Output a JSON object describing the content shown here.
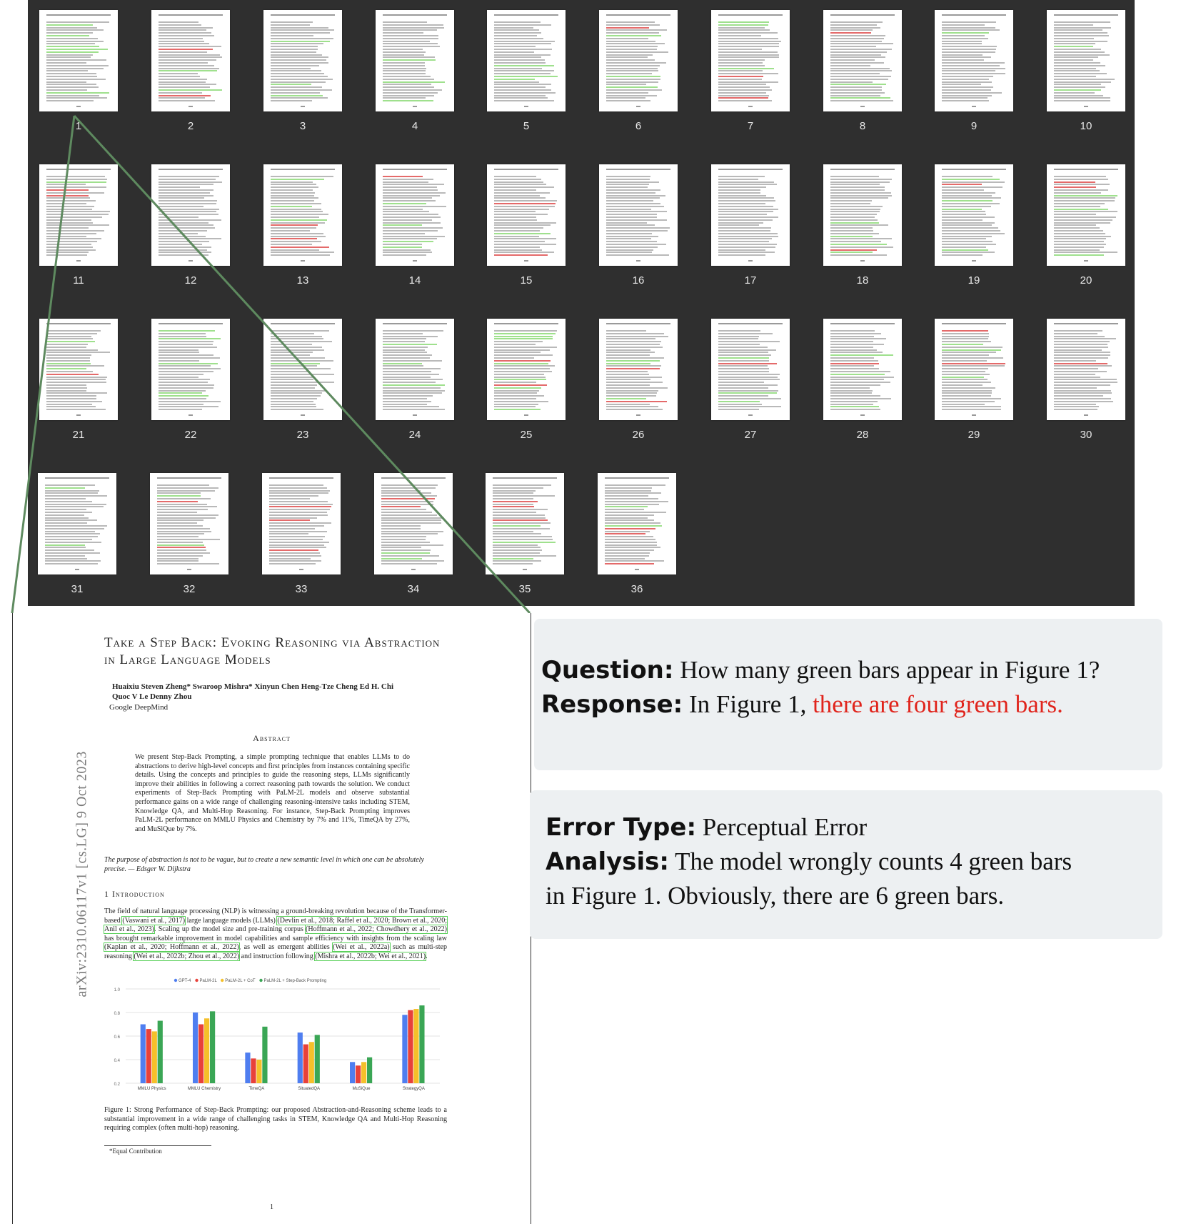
{
  "thumbnails": {
    "pages": [
      "1",
      "2",
      "3",
      "4",
      "5",
      "6",
      "7",
      "8",
      "9",
      "10",
      "11",
      "12",
      "13",
      "14",
      "15",
      "16",
      "17",
      "18",
      "19",
      "20",
      "21",
      "22",
      "23",
      "24",
      "25",
      "26",
      "27",
      "28",
      "29",
      "30",
      "31",
      "32",
      "33",
      "34",
      "35",
      "36"
    ]
  },
  "zoomed_page": {
    "title": "Take a Step Back: Evoking Reasoning via Abstraction in Large Language Models",
    "authors": "Huaixiu Steven Zheng*  Swaroop Mishra*  Xinyun Chen  Heng-Tze Cheng  Ed H. Chi  Quoc V Le  Denny Zhou",
    "affiliation": "Google DeepMind",
    "abstract_heading": "Abstract",
    "abstract": "We present Step-Back Prompting, a simple prompting technique that enables LLMs to do abstractions to derive high-level concepts and first principles from instances containing specific details. Using the concepts and principles to guide the reasoning steps, LLMs significantly improve their abilities in following a correct reasoning path towards the solution. We conduct experiments of Step-Back Prompting with PaLM-2L models and observe substantial performance gains on a wide range of challenging reasoning-intensive tasks including STEM, Knowledge QA, and Multi-Hop Reasoning. For instance, Step-Back Prompting improves PaLM-2L performance on MMLU Physics and Chemistry by 7% and 11%, TimeQA by 27%, and MuSiQue by 7%.",
    "quote": "The purpose of abstraction is not to be vague, but to create a new semantic level in which one can be absolutely precise. — Edsger W. Dijkstra",
    "intro_heading": "1   Introduction",
    "intro": {
      "t1": "The field of natural language processing (NLP) is witnessing a ground-breaking revolution because of the Transformer-based ",
      "c1": "(Vaswani et al., 2017)",
      "t2": " large language models (LLMs) ",
      "c2": "(Devlin et al., 2018; Raffel et al., 2020; Brown et al., 2020; Anil et al., 2023)",
      "t3": ". Scaling up the model size and pre-training corpus ",
      "c3": "(Hoffmann et al., 2022; Chowdhery et al., 2022)",
      "t4": " has brought remarkable improvement in model capabilities and sample efficiency with insights from the scaling law ",
      "c4": "(Kaplan et al., 2020; Hoffmann et al., 2022)",
      "t5": ", as well as emergent abilities ",
      "c5": "(Wei et al., 2022a)",
      "t6": " such as multi-step reasoning ",
      "c6": "(Wei et al., 2022b; Zhou et al., 2022)",
      "t7": " and instruction following ",
      "c7": "(Mishra et al., 2022b; Wei et al., 2021)",
      "t8": "."
    },
    "arxiv_stamp": "arXiv:2310.06117v1  [cs.LG]  9 Oct 2023",
    "figure_caption": "Figure 1: Strong Performance of Step-Back Prompting: our proposed Abstraction-and-Reasoning scheme leads to a substantial improvement in a wide range of challenging tasks in STEM, Knowledge QA and Multi-Hop Reasoning requiring complex (often multi-hop) reasoning.",
    "footnote": "*Equal Contribution",
    "page_number": "1"
  },
  "chart_data": {
    "type": "bar",
    "categories": [
      "MMLU Physics",
      "MMLU Chemistry",
      "TimeQA",
      "SituatedQA",
      "MuSiQue",
      "StrategyQA"
    ],
    "series": [
      {
        "name": "GPT-4",
        "color": "#4f7ef0",
        "values": [
          0.7,
          0.8,
          0.46,
          0.63,
          0.38,
          0.78
        ]
      },
      {
        "name": "PaLM-2L",
        "color": "#e8413a",
        "values": [
          0.66,
          0.7,
          0.41,
          0.53,
          0.35,
          0.82
        ]
      },
      {
        "name": "PaLM-2L + CoT",
        "color": "#f5c02a",
        "values": [
          0.64,
          0.75,
          0.4,
          0.55,
          0.38,
          0.83
        ]
      },
      {
        "name": "PaLM-2L + Step-Back Prompting",
        "color": "#3aa655",
        "values": [
          0.73,
          0.81,
          0.68,
          0.61,
          0.42,
          0.86
        ]
      }
    ],
    "yticks": [
      "1.0",
      "0.8",
      "0.6",
      "0.4",
      "0.2"
    ],
    "ylim": [
      0.2,
      1.0
    ],
    "legend_position": "top"
  },
  "qa_panel": {
    "question_label": "Question:",
    "question": "How many green bars appear in Figure 1?",
    "response_label": "Response:",
    "response_prefix": "In Figure 1, ",
    "response_highlight": "there are four green bars.",
    "highlight_color": "#e0241c"
  },
  "error_panel": {
    "error_type_label": "Error Type:",
    "error_type": "Perceptual Error",
    "analysis_label": "Analysis:",
    "analysis_line1": "The model wrongly counts 4 green bars",
    "analysis_line2": "in Figure 1. Obviously, there are 6 green bars."
  }
}
